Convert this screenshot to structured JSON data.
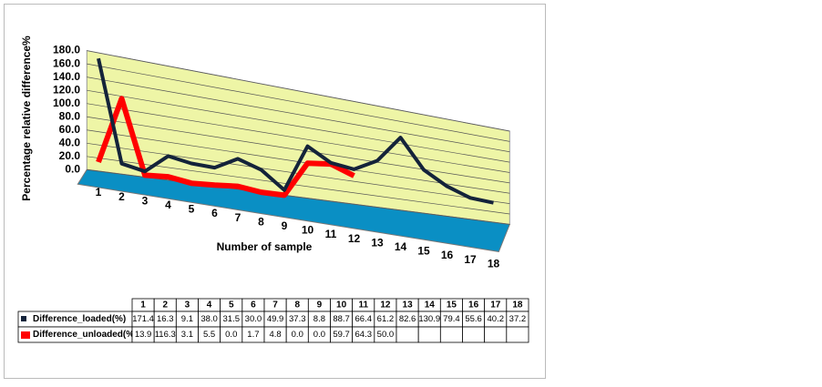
{
  "chart_data": {
    "type": "line3d",
    "y_label": "Percentage relative difference%",
    "x_label": "Number of sample",
    "categories": [
      "1",
      "2",
      "3",
      "4",
      "5",
      "6",
      "7",
      "8",
      "9",
      "10",
      "11",
      "12",
      "13",
      "14",
      "15",
      "16",
      "17",
      "18"
    ],
    "series": [
      {
        "name": "Difference_loaded(%)",
        "color": "#14233a",
        "values": [
          171.4,
          16.3,
          9.1,
          38.0,
          31.5,
          30.0,
          49.9,
          37.3,
          8.8,
          88.7,
          66.4,
          61.2,
          82.6,
          130.9,
          79.4,
          55.6,
          40.2,
          37.2
        ],
        "value_labels": [
          "171.4",
          "16.3",
          "9.1",
          "38.0",
          "31.5",
          "30.0",
          "49.9",
          "37.3",
          "8.8",
          "88.7",
          "66.4",
          "61.2",
          "82.6",
          "130.9",
          "79.4",
          "55.6",
          "40.2",
          "37.2"
        ]
      },
      {
        "name": "Difference_unloaded(%)",
        "color": "#ff0000",
        "values": [
          13.9,
          116.3,
          3.1,
          5.5,
          0.0,
          1.7,
          4.8,
          0.0,
          0.0,
          59.7,
          64.3,
          50.0,
          null,
          null,
          null,
          null,
          null,
          null
        ],
        "value_labels": [
          "13.9",
          "116.3",
          "3.1",
          "5.5",
          "0.0",
          "1.7",
          "4.8",
          "0.0",
          "0.0",
          "59.7",
          "64.3",
          "50.0",
          null,
          null,
          null,
          null,
          null,
          null
        ]
      }
    ],
    "ylim": [
      0,
      180
    ],
    "yticks": [
      {
        "value": 0,
        "label": "0.0"
      },
      {
        "value": 20,
        "label": "20.0"
      },
      {
        "value": 40,
        "label": "40.0"
      },
      {
        "value": 60,
        "label": "60.0"
      },
      {
        "value": 80,
        "label": "80.0"
      },
      {
        "value": 100,
        "label": "100.0"
      },
      {
        "value": 120,
        "label": "120.0"
      },
      {
        "value": 140,
        "label": "140.0"
      },
      {
        "value": 160,
        "label": "160.0"
      },
      {
        "value": 180,
        "label": "180.0"
      }
    ],
    "grid": true,
    "wall_color": "#eef5a6",
    "floor_color": "#0a8fc4"
  }
}
